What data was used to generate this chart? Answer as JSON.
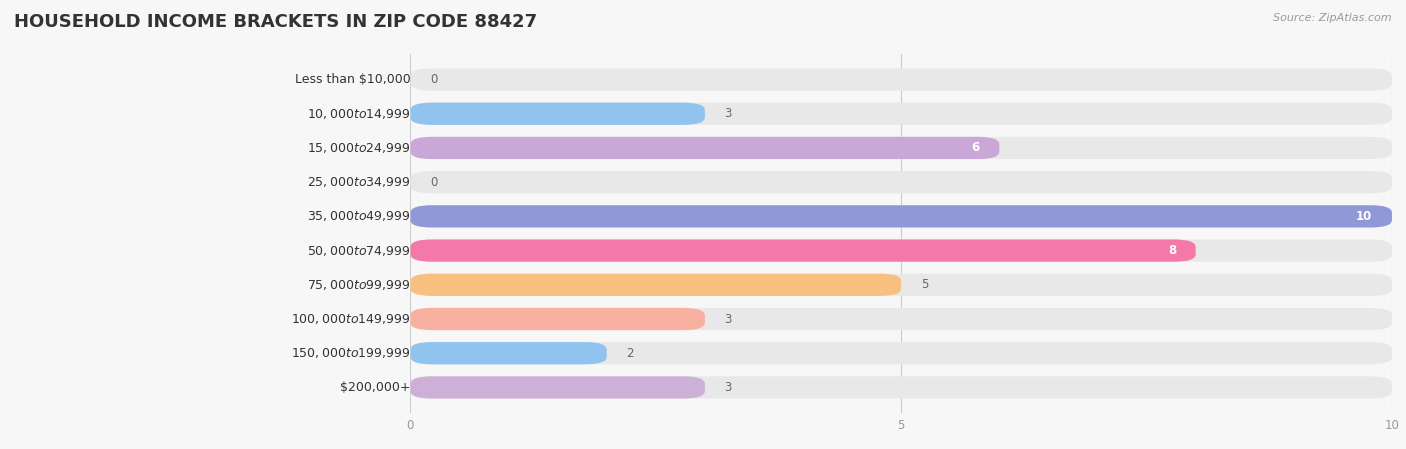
{
  "title": "HOUSEHOLD INCOME BRACKETS IN ZIP CODE 88427",
  "source": "Source: ZipAtlas.com",
  "categories": [
    "Less than $10,000",
    "$10,000 to $14,999",
    "$15,000 to $24,999",
    "$25,000 to $34,999",
    "$35,000 to $49,999",
    "$50,000 to $74,999",
    "$75,000 to $99,999",
    "$100,000 to $149,999",
    "$150,000 to $199,999",
    "$200,000+"
  ],
  "values": [
    0,
    3,
    6,
    0,
    10,
    8,
    5,
    3,
    2,
    3
  ],
  "bar_colors": [
    "#F4A4A4",
    "#90C4EE",
    "#C9A8D8",
    "#7DD4C4",
    "#9098D8",
    "#F478A8",
    "#F8C080",
    "#F8B0A0",
    "#90C4EE",
    "#CDB0D8"
  ],
  "xlim": [
    0,
    10
  ],
  "xticks": [
    0,
    5,
    10
  ],
  "background_color": "#f7f7f7",
  "bar_background_color": "#e8e8e8",
  "title_fontsize": 13,
  "label_fontsize": 9,
  "value_fontsize": 8.5,
  "bar_height": 0.65,
  "figsize": [
    14.06,
    4.49
  ],
  "value_label_color_outside": "#666666",
  "value_label_color_inside": "#ffffff"
}
